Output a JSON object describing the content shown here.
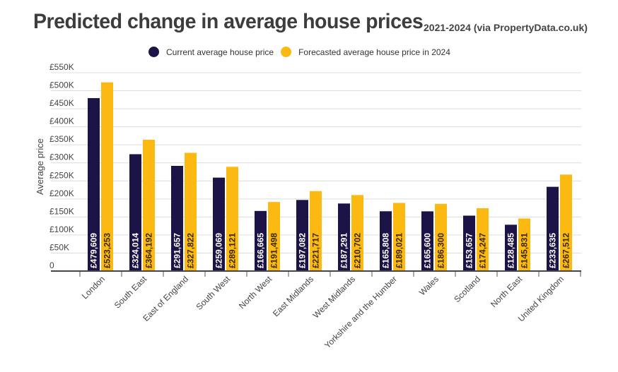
{
  "chart_data": {
    "type": "bar",
    "title": "Predicted change in average house prices",
    "subtitle": "2021-2024 (via PropertyData.co.uk)",
    "xlabel": "",
    "ylabel": "Average price",
    "ylim": [
      0,
      550000
    ],
    "yticks": [
      0,
      50000,
      100000,
      150000,
      200000,
      250000,
      300000,
      350000,
      400000,
      450000,
      500000,
      550000
    ],
    "ytick_labels": [
      "0",
      "£50K",
      "£100K",
      "£150K",
      "£200K",
      "£250K",
      "£300K",
      "£350K",
      "£400K",
      "£450K",
      "£500K",
      "£550K"
    ],
    "grid": true,
    "legend_position": "top-center",
    "categories": [
      "London",
      "South East",
      "East of England",
      "South West",
      "North West",
      "East Midlands",
      "West Midlands",
      "Yorkshire and the Humber",
      "Wales",
      "Scotland",
      "North East",
      "United Kingdom"
    ],
    "series": [
      {
        "name": "Current average house price",
        "color": "#1c1446",
        "label_color": "#ffffff",
        "values": [
          479609,
          324014,
          291657,
          259069,
          166665,
          197082,
          187291,
          165808,
          165600,
          153657,
          128485,
          233635
        ],
        "labels": [
          "£479,609",
          "£324,014",
          "£291,657",
          "£259,069",
          "£166,665",
          "£197,082",
          "£187,291",
          "£165,808",
          "£165,600",
          "£153,657",
          "£128,485",
          "£233,635"
        ]
      },
      {
        "name": "Forecasted average house price in 2024",
        "color": "#fbb912",
        "label_color": "#3a2a00",
        "values": [
          523253,
          364192,
          327822,
          289121,
          191498,
          221717,
          210702,
          189021,
          186300,
          174247,
          145831,
          267512
        ],
        "labels": [
          "£523,253",
          "£364,192",
          "£327,822",
          "£289,121",
          "£191,498",
          "£221,717",
          "£210,702",
          "£189,021",
          "£186,300",
          "£174,247",
          "£145,831",
          "£267,512"
        ]
      }
    ]
  }
}
